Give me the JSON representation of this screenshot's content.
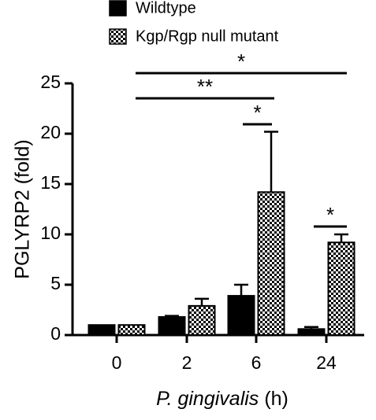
{
  "chart_data": {
    "type": "bar",
    "categories": [
      "0",
      "2",
      "6",
      "24"
    ],
    "series": [
      {
        "name": "Wildtype",
        "color": "#000000",
        "values": [
          1.0,
          1.8,
          3.9,
          0.6
        ],
        "errors": [
          0.0,
          0.1,
          1.1,
          0.2
        ]
      },
      {
        "name": "Kgp/Rgp null mutant",
        "color": "checker",
        "values": [
          1.0,
          2.9,
          14.2,
          9.2
        ],
        "errors": [
          0.0,
          0.7,
          6.0,
          0.8
        ]
      }
    ],
    "ylabel": "PGLYRP2 (fold)",
    "xlabel": {
      "italic": "P. gingivalis",
      "plain": "(h)"
    },
    "ylim": [
      0,
      25
    ],
    "yticks": [
      0,
      5,
      10,
      15,
      20,
      25
    ],
    "annotations": [
      "*",
      "**",
      "*",
      "*"
    ]
  }
}
